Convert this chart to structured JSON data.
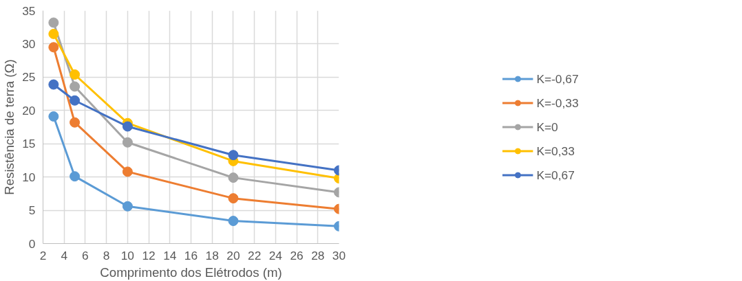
{
  "chart_data": {
    "type": "line",
    "xlabel": "Comprimento dos Elétrodos (m)",
    "ylabel": "Resistência de terra (Ω)",
    "x": [
      3,
      5,
      10,
      20,
      30
    ],
    "series": [
      {
        "name": "K=-0,67",
        "color": "#5b9bd5",
        "values": [
          19.1,
          10.1,
          5.6,
          3.4,
          2.6
        ]
      },
      {
        "name": "K=-0,33",
        "color": "#ed7d31",
        "values": [
          29.5,
          18.2,
          10.8,
          6.8,
          5.2
        ]
      },
      {
        "name": "K=0",
        "color": "#a5a5a5",
        "values": [
          33.2,
          23.6,
          15.2,
          9.9,
          7.7
        ]
      },
      {
        "name": "K=0,33",
        "color": "#ffc000",
        "values": [
          31.5,
          25.4,
          18.1,
          12.4,
          9.8
        ]
      },
      {
        "name": "K=0,67",
        "color": "#4472c4",
        "values": [
          23.9,
          21.5,
          17.6,
          13.3,
          11.0
        ]
      }
    ],
    "xlim": [
      2,
      30
    ],
    "xticks": [
      2,
      4,
      6,
      8,
      10,
      12,
      14,
      16,
      18,
      20,
      22,
      24,
      26,
      28,
      30
    ],
    "ylim": [
      0,
      35
    ],
    "yticks": [
      0,
      5,
      10,
      15,
      20,
      25,
      30,
      35
    ],
    "grid": true,
    "legend": "right",
    "marker": "circle",
    "line_style": "solid"
  }
}
